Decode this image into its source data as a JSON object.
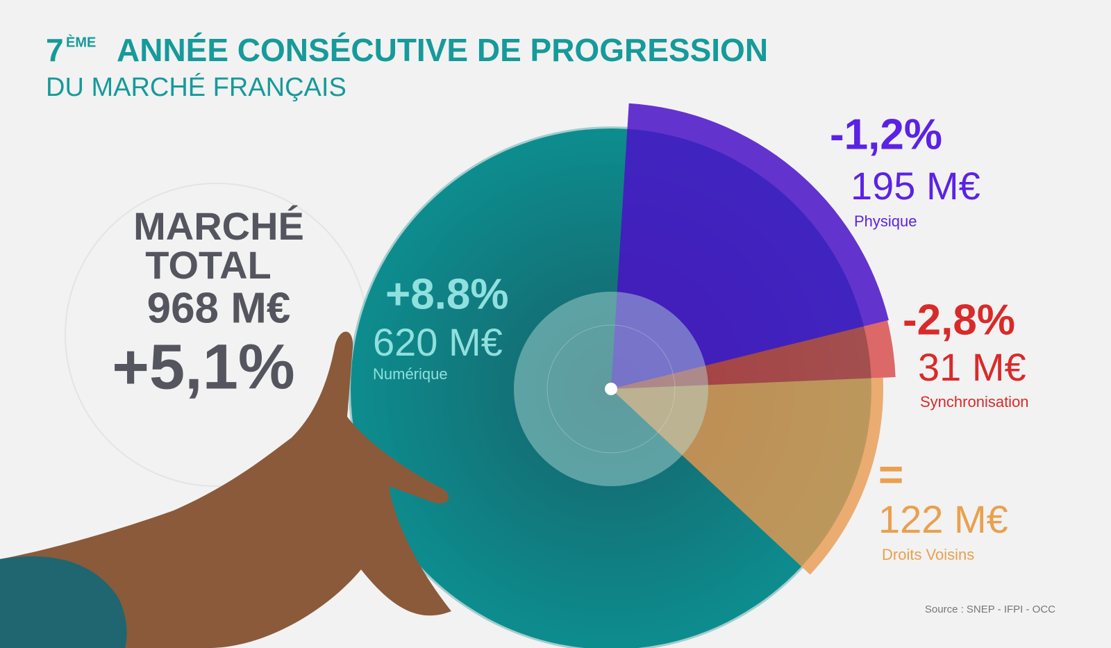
{
  "title_number": "7",
  "title_sup": "ÈME",
  "title_rest": "ANNÉE CONSÉCUTIVE DE PROGRESSION",
  "subtitle": "DU MARCHÉ FRANÇAIS",
  "total": {
    "line1": "MARCHÉ",
    "line2": "TOTAL",
    "value": 968,
    "value_label": "968 M€",
    "change": "+5,1%"
  },
  "chart_data": {
    "type": "pie",
    "categories": [
      "Numérique",
      "Physique",
      "Synchronisation",
      "Droits Voisins"
    ],
    "values": [
      620,
      195,
      31,
      122
    ],
    "value_labels": [
      "620 M€",
      "195 M€",
      "31 M€",
      "122 M€"
    ],
    "changes": [
      "+8.8%",
      "-1,2%",
      "-2,8%",
      "="
    ],
    "colors": [
      "#0e8a8c",
      "#4a12c8",
      "#d63a3a",
      "#e89a50"
    ],
    "label_colors": [
      "#8fe0de",
      "#5b22e6",
      "#d92a2a",
      "#e9a04f"
    ]
  },
  "source": "Source : SNEP - IFPI - OCC"
}
